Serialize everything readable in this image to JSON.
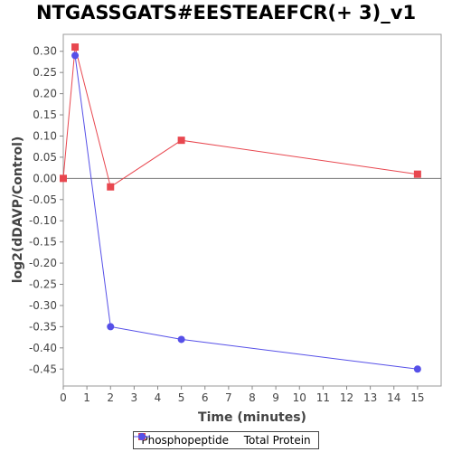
{
  "chart_data": {
    "type": "line",
    "title": "NTGASSGATS#EESTEAEFCR(+ 3)_v1",
    "xlabel": "Time (minutes)",
    "ylabel": "log2(dDAVP/Control)",
    "xlim": [
      0,
      16
    ],
    "ylim": [
      -0.49,
      0.34
    ],
    "x_ticks": [
      0,
      1,
      2,
      3,
      4,
      5,
      6,
      7,
      8,
      9,
      10,
      11,
      12,
      13,
      14,
      15
    ],
    "y_ticks": [
      0.3,
      0.25,
      0.2,
      0.15,
      0.1,
      0.05,
      0.0,
      -0.05,
      -0.1,
      -0.15,
      -0.2,
      -0.25,
      -0.3,
      -0.35,
      -0.4,
      -0.45
    ],
    "zero_line": true,
    "legend_position": "bottom",
    "series": [
      {
        "name": "Phosphopeptide",
        "color": "#e8474f",
        "marker": "square",
        "x": [
          0,
          0.5,
          2,
          5,
          15
        ],
        "y": [
          0.0,
          0.31,
          -0.02,
          0.09,
          0.01
        ]
      },
      {
        "name": "Total Protein",
        "color": "#5650e8",
        "marker": "circle",
        "x": [
          0.5,
          2,
          5,
          15
        ],
        "y": [
          0.29,
          -0.35,
          -0.38,
          -0.45
        ]
      }
    ]
  }
}
